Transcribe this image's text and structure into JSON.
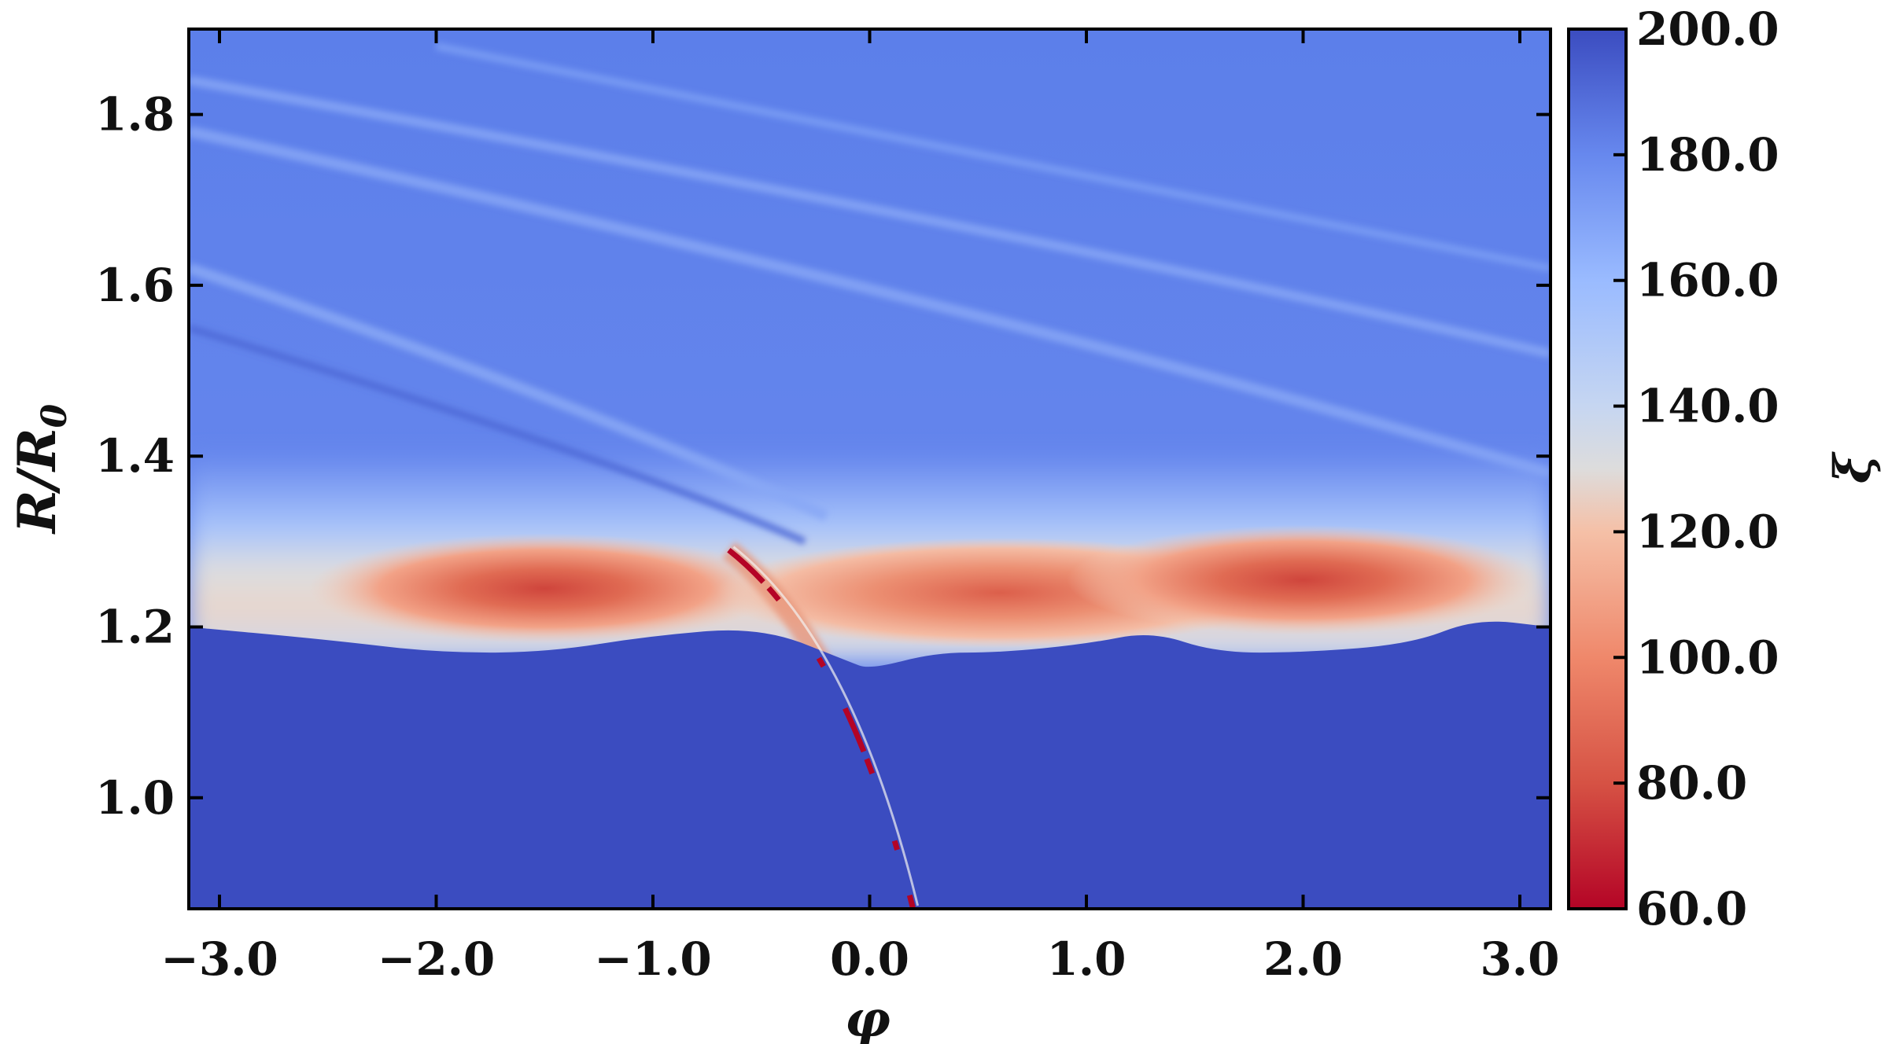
{
  "chart_data": {
    "type": "heatmap",
    "title": "",
    "xlabel": "φ",
    "ylabel_main": "R/R",
    "ylabel_sub": "0",
    "xlim": [
      -3.14159,
      3.14159
    ],
    "ylim": [
      0.87,
      1.9
    ],
    "x_ticks": [
      -3.0,
      -2.0,
      -1.0,
      0.0,
      1.0,
      2.0,
      3.0
    ],
    "x_tick_labels": [
      "−3.0",
      "−2.0",
      "−1.0",
      "0.0",
      "1.0",
      "2.0",
      "3.0"
    ],
    "y_ticks": [
      1.0,
      1.2,
      1.4,
      1.6,
      1.8
    ],
    "y_tick_labels": [
      "1.0",
      "1.2",
      "1.4",
      "1.6",
      "1.8"
    ],
    "colorbar": {
      "label": "ξ",
      "colormap": "coolwarm",
      "range": [
        60.0,
        200.0
      ],
      "ticks": [
        60,
        80,
        100,
        120,
        140,
        160,
        180,
        200
      ],
      "tick_labels": [
        "60.0",
        "80.0",
        "100.0",
        "120.0",
        "140.0",
        "160.0",
        "180.0",
        "200.0"
      ]
    },
    "description_of_field": {
      "background_value": 185,
      "inner_region_value": 200,
      "boundary_R_at_phi": [
        [
          -3.14,
          1.2
        ],
        [
          -2.5,
          1.185
        ],
        [
          -2.0,
          1.17
        ],
        [
          -1.5,
          1.17
        ],
        [
          -1.0,
          1.19
        ],
        [
          -0.5,
          1.2
        ],
        [
          -0.1,
          1.16
        ],
        [
          0.0,
          1.15
        ],
        [
          0.3,
          1.17
        ],
        [
          0.6,
          1.17
        ],
        [
          1.0,
          1.18
        ],
        [
          1.3,
          1.195
        ],
        [
          1.6,
          1.17
        ],
        [
          2.0,
          1.17
        ],
        [
          2.5,
          1.18
        ],
        [
          2.8,
          1.21
        ],
        [
          3.14,
          1.2
        ]
      ],
      "hot_blobs": [
        {
          "phi": -1.5,
          "R": 1.245,
          "value": 85
        },
        {
          "phi": 0.6,
          "R": 1.24,
          "value": 97
        },
        {
          "phi": 2.0,
          "R": 1.255,
          "value": 82
        }
      ],
      "spiral_arm": {
        "phi_start": -0.65,
        "R_start": 1.29,
        "phi_end": 0.2,
        "R_end": 0.87,
        "min_value": 60
      }
    }
  }
}
